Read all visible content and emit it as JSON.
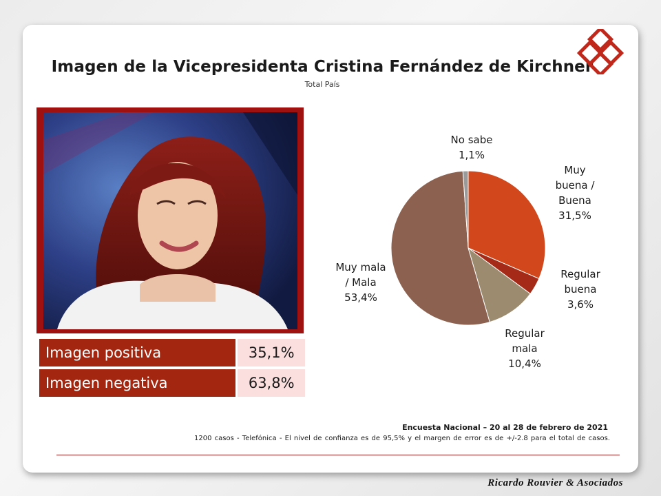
{
  "title": "Imagen de la Vicepresidenta Cristina Fernández de Kirchner",
  "subtitle": "Total País",
  "stats": [
    {
      "label": "Imagen positiva",
      "value": "35,1%"
    },
    {
      "label": "Imagen negativa",
      "value": "63,8%"
    }
  ],
  "chart_data": {
    "type": "pie",
    "categories": [
      "Muy buena / Buena",
      "Regular buena",
      "Regular mala",
      "Muy mala / Mala",
      "No sabe"
    ],
    "values": [
      31.5,
      3.6,
      10.4,
      53.4,
      1.1
    ],
    "colors": [
      "#d2471b",
      "#a52a18",
      "#9c8b6e",
      "#8c6150",
      "#9a9a9a"
    ],
    "labels": [
      [
        "Muy",
        "buena /",
        "Buena",
        "31,5%"
      ],
      [
        "Regular",
        "buena",
        "3,6%"
      ],
      [
        "Regular",
        "mala",
        "10,4%"
      ],
      [
        "Muy mala",
        "/ Mala",
        "53,4%"
      ],
      [
        "No sabe",
        "1,1%"
      ]
    ]
  },
  "footer": {
    "survey": "Encuesta Nacional – 20 al 28 de febrero de 2021",
    "note": "1200 casos - Telefónica   - El nivel de confianza es de 95,5% y el margen de error es de +/-2.8 para el total de casos."
  },
  "brand": "Ricardo Rouvier & Asociados"
}
